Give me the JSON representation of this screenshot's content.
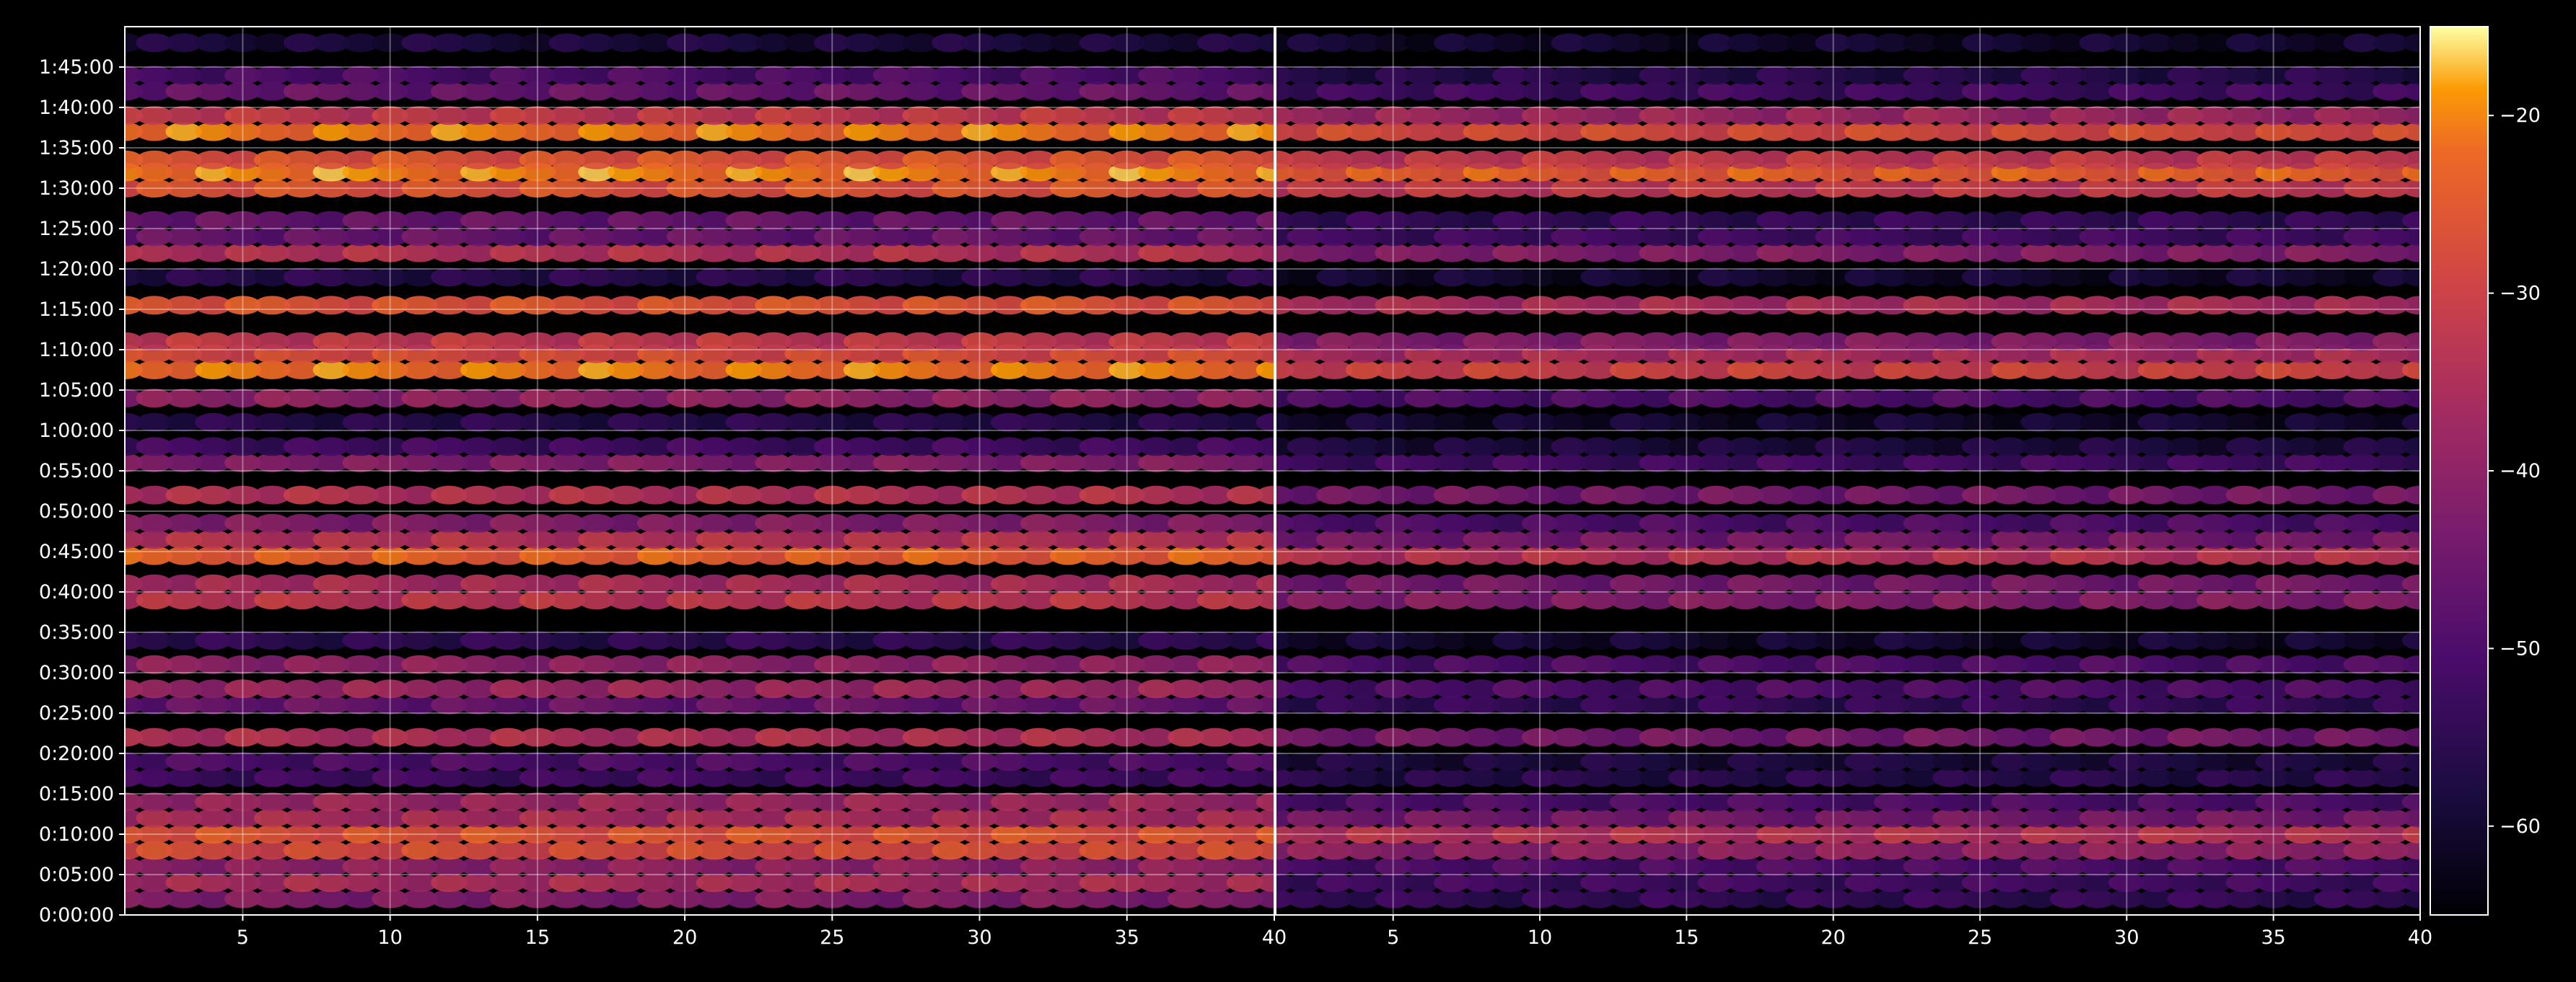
{
  "chart_data": {
    "type": "heatmap",
    "title": "",
    "background": "#000000",
    "colormap": "inferno",
    "grid": true,
    "panels": [
      {
        "name": "",
        "x_range": [
          1,
          40
        ],
        "x_ticks": [
          5,
          10,
          15,
          20,
          25,
          30,
          35,
          40
        ],
        "x_tick_labels": [
          "5",
          "10",
          "15",
          "20",
          "25",
          "30",
          "35",
          "40"
        ],
        "rows": [
          {
            "time": "0:02:00",
            "db": -42
          },
          {
            "time": "0:04:00",
            "db": -36
          },
          {
            "time": "0:06:00",
            "db": -40
          },
          {
            "time": "0:08:00",
            "db": -28
          },
          {
            "time": "0:10:00",
            "db": -26
          },
          {
            "time": "0:12:00",
            "db": -36
          },
          {
            "time": "0:14:00",
            "db": -38
          },
          {
            "time": "0:17:00",
            "db": -52
          },
          {
            "time": "0:19:00",
            "db": -50
          },
          {
            "time": "0:22:00",
            "db": -35
          },
          {
            "time": "0:26:00",
            "db": -46
          },
          {
            "time": "0:28:00",
            "db": -38
          },
          {
            "time": "0:31:00",
            "db": -40
          },
          {
            "time": "0:34:00",
            "db": -55
          },
          {
            "time": "0:39:00",
            "db": -33
          },
          {
            "time": "0:41:00",
            "db": -36
          },
          {
            "time": "0:44:30",
            "db": -24
          },
          {
            "time": "0:46:30",
            "db": -34
          },
          {
            "time": "0:48:30",
            "db": -42
          },
          {
            "time": "0:52:00",
            "db": -34
          },
          {
            "time": "0:56:00",
            "db": -42
          },
          {
            "time": "0:58:00",
            "db": -52
          },
          {
            "time": "1:01:00",
            "db": -56
          },
          {
            "time": "1:04:00",
            "db": -40
          },
          {
            "time": "1:07:30",
            "db": -21
          },
          {
            "time": "1:09:30",
            "db": -28
          },
          {
            "time": "1:11:00",
            "db": -32
          },
          {
            "time": "1:15:30",
            "db": -26
          },
          {
            "time": "1:19:00",
            "db": -56
          },
          {
            "time": "1:22:00",
            "db": -34
          },
          {
            "time": "1:24:00",
            "db": -46
          },
          {
            "time": "1:26:00",
            "db": -46
          },
          {
            "time": "1:30:00",
            "db": -26
          },
          {
            "time": "1:32:00",
            "db": -20
          },
          {
            "time": "1:33:30",
            "db": -26
          },
          {
            "time": "1:37:00",
            "db": -21
          },
          {
            "time": "1:39:00",
            "db": -32
          },
          {
            "time": "1:42:00",
            "db": -46
          },
          {
            "time": "1:44:00",
            "db": -50
          },
          {
            "time": "1:48:00",
            "db": -58
          }
        ]
      },
      {
        "name": "",
        "x_range": [
          1,
          40
        ],
        "x_ticks": [
          5,
          10,
          15,
          20,
          25,
          30,
          35,
          40
        ],
        "x_tick_labels": [
          "5",
          "10",
          "15",
          "20",
          "25",
          "30",
          "35",
          "40"
        ],
        "rows": [
          {
            "time": "0:02:00",
            "db": -54
          },
          {
            "time": "0:04:00",
            "db": -52
          },
          {
            "time": "0:06:00",
            "db": -50
          },
          {
            "time": "0:08:00",
            "db": -40
          },
          {
            "time": "0:10:00",
            "db": -34
          },
          {
            "time": "0:12:00",
            "db": -44
          },
          {
            "time": "0:14:00",
            "db": -50
          },
          {
            "time": "0:17:00",
            "db": -56
          },
          {
            "time": "0:19:00",
            "db": -58
          },
          {
            "time": "0:22:00",
            "db": -44
          },
          {
            "time": "0:26:00",
            "db": -54
          },
          {
            "time": "0:28:00",
            "db": -50
          },
          {
            "time": "0:31:00",
            "db": -50
          },
          {
            "time": "0:34:00",
            "db": -60
          },
          {
            "time": "0:39:00",
            "db": -42
          },
          {
            "time": "0:41:00",
            "db": -44
          },
          {
            "time": "0:44:30",
            "db": -34
          },
          {
            "time": "0:46:30",
            "db": -44
          },
          {
            "time": "0:48:30",
            "db": -50
          },
          {
            "time": "0:52:00",
            "db": -44
          },
          {
            "time": "0:56:00",
            "db": -52
          },
          {
            "time": "0:58:00",
            "db": -58
          },
          {
            "time": "1:01:00",
            "db": -60
          },
          {
            "time": "1:04:00",
            "db": -50
          },
          {
            "time": "1:07:30",
            "db": -30
          },
          {
            "time": "1:09:30",
            "db": -36
          },
          {
            "time": "1:11:00",
            "db": -42
          },
          {
            "time": "1:15:30",
            "db": -36
          },
          {
            "time": "1:19:00",
            "db": -60
          },
          {
            "time": "1:22:00",
            "db": -42
          },
          {
            "time": "1:24:00",
            "db": -52
          },
          {
            "time": "1:26:00",
            "db": -54
          },
          {
            "time": "1:30:00",
            "db": -32
          },
          {
            "time": "1:32:00",
            "db": -24
          },
          {
            "time": "1:33:30",
            "db": -32
          },
          {
            "time": "1:37:00",
            "db": -28
          },
          {
            "time": "1:39:00",
            "db": -38
          },
          {
            "time": "1:42:00",
            "db": -52
          },
          {
            "time": "1:44:00",
            "db": -56
          },
          {
            "time": "1:48:00",
            "db": -60
          }
        ]
      }
    ],
    "y_axis": {
      "range": [
        "0:00:00",
        "1:50:00"
      ],
      "tick_labels": [
        "0:00:00",
        "0:05:00",
        "0:10:00",
        "0:15:00",
        "0:20:00",
        "0:25:00",
        "0:30:00",
        "0:35:00",
        "0:40:00",
        "0:45:00",
        "0:50:00",
        "0:55:00",
        "1:00:00",
        "1:05:00",
        "1:10:00",
        "1:15:00",
        "1:20:00",
        "1:25:00",
        "1:30:00",
        "1:35:00",
        "1:40:00",
        "1:45:00"
      ]
    },
    "colorbar": {
      "range": [
        -65,
        -15
      ],
      "ticks": [
        -20,
        -30,
        -40,
        -50,
        -60
      ],
      "tick_labels": [
        "−20",
        "−30",
        "−40",
        "−50",
        "−60"
      ]
    }
  }
}
